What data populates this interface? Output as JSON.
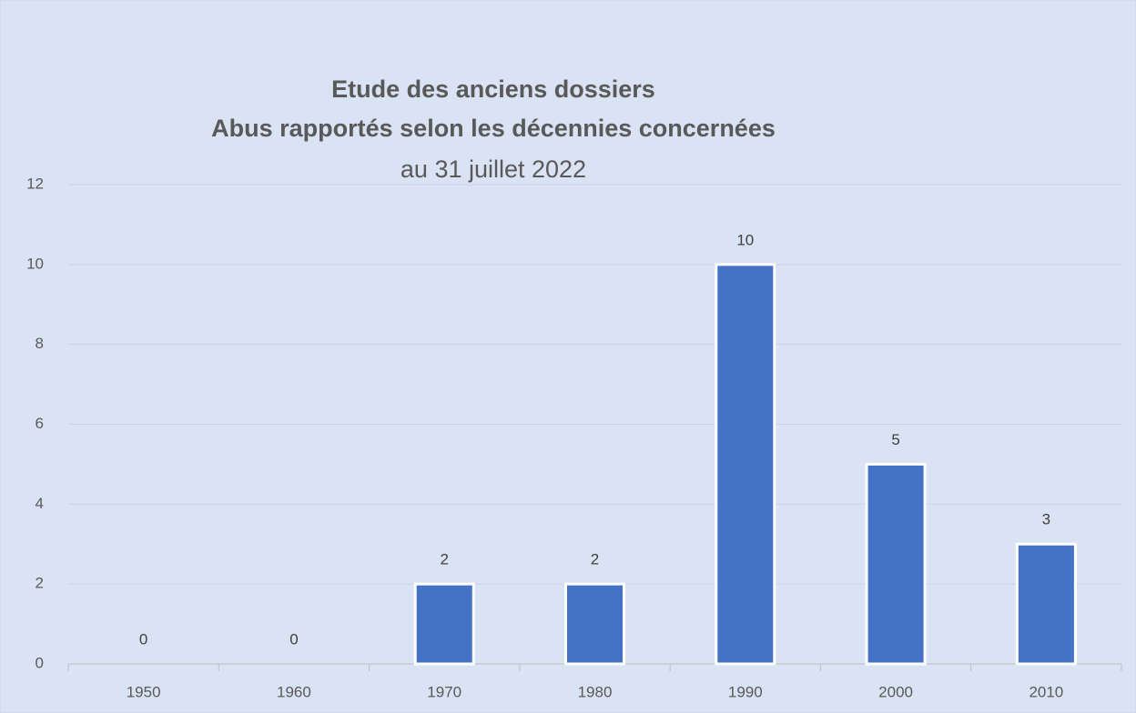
{
  "chart_data": {
    "type": "bar",
    "title": [
      "Etude des anciens dossiers",
      "Abus rapportés selon les décennies concernées"
    ],
    "subtitle": "au 31 juillet 2022",
    "categories": [
      "1950",
      "1960",
      "1970",
      "1980",
      "1990",
      "2000",
      "2010"
    ],
    "values": [
      0,
      0,
      2,
      2,
      10,
      5,
      3
    ],
    "color": "#4472c4",
    "ylim": [
      0,
      12
    ],
    "yticks": [
      0,
      2,
      4,
      6,
      8,
      10,
      12
    ],
    "grid": true
  }
}
